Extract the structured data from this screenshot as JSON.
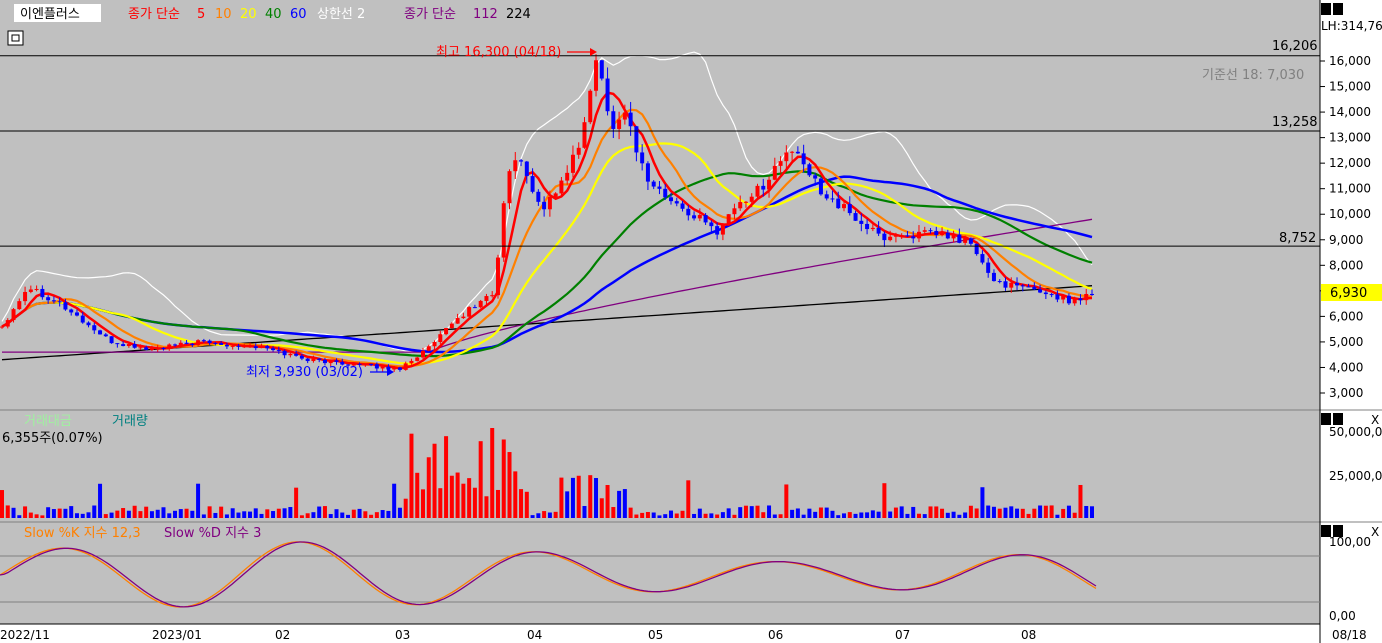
{
  "header": {
    "stock_name": "이엔플러스",
    "ma_prefix": "종가 단순",
    "ma_periods": [
      {
        "label": "5",
        "color": "#ff0000"
      },
      {
        "label": "10",
        "color": "#ff8000"
      },
      {
        "label": "20",
        "color": "#ffff00"
      },
      {
        "label": "40",
        "color": "#008000"
      },
      {
        "label": "60",
        "color": "#0000ff"
      }
    ],
    "band_label": "상한선 2",
    "ma2_prefix": "종가 단순",
    "ma2_periods": [
      {
        "label": "112",
        "color": "#800080"
      },
      {
        "label": "224",
        "color": "#000000"
      }
    ]
  },
  "price_panel": {
    "high_annotation": "최고 16,300 (04/18)",
    "low_annotation": "최저 3,930 (03/02)",
    "hlines": [
      {
        "value": 16206,
        "label": "16,206"
      },
      {
        "value": 13258,
        "label": "13,258"
      },
      {
        "value": 8752,
        "label": "8,752"
      }
    ],
    "top_right_label": "LH:314,76",
    "kijun_label": "기준선 18: 7,030",
    "current_price_label": "6,930",
    "current_price": 6930,
    "y_ticks": [
      "16,000",
      "15,000",
      "14,000",
      "13,000",
      "12,000",
      "11,000",
      "10,000",
      "9,000",
      "8,000",
      "7,000",
      "6,000",
      "5,000",
      "4,000",
      "3,000"
    ],
    "colors": {
      "up": "#ff0000",
      "down": "#0000ff",
      "band": "#ffffff",
      "price_box": "#ffff00"
    }
  },
  "volume_panel": {
    "legend_amount": "거래대금",
    "legend_volume": "거래량",
    "info_text": "6,355주(0.07%)",
    "y_ticks": [
      "50,000,0",
      "25,000,0"
    ]
  },
  "stoch_panel": {
    "legend_k": "Slow %K 지수 12,3",
    "legend_d": "Slow %D 지수 3",
    "y_ticks": [
      "100,00",
      "0,00"
    ],
    "colors": {
      "k": "#ff8000",
      "d": "#800080",
      "fill_high": "#ffa07a",
      "fill_low": "#87cefa"
    }
  },
  "x_axis": {
    "labels": [
      "2022/11",
      "2023/01",
      "02",
      "03",
      "04",
      "05",
      "06",
      "07",
      "08"
    ],
    "last_date": "08/18"
  },
  "chart_data": {
    "type": "line",
    "title": "이엔플러스",
    "price_range": [
      3930,
      16300
    ],
    "ylim": [
      2200,
      17600
    ],
    "high": {
      "value": 16300,
      "date": "04/18"
    },
    "low": {
      "value": 3930,
      "date": "03/02"
    },
    "current": 6930,
    "price_keypoints": [
      {
        "x": "2022/11",
        "y": 5500
      },
      {
        "x": "2022/11 late",
        "y": 7200
      },
      {
        "x": "2023/01",
        "y": 4700
      },
      {
        "x": "02",
        "y": 4600
      },
      {
        "x": "03",
        "y": 3930
      },
      {
        "x": "03 late",
        "y": 6500
      },
      {
        "x": "04 start",
        "y": 11500
      },
      {
        "x": "04",
        "y": 10500
      },
      {
        "x": "04/18",
        "y": 16300
      },
      {
        "x": "05",
        "y": 12000
      },
      {
        "x": "05 mid",
        "y": 9500
      },
      {
        "x": "06",
        "y": 12600
      },
      {
        "x": "06 mid",
        "y": 10500
      },
      {
        "x": "07",
        "y": 9000
      },
      {
        "x": "07 mid",
        "y": 9200
      },
      {
        "x": "08",
        "y": 7000
      },
      {
        "x": "08/18",
        "y": 6930
      }
    ],
    "stoch_range": [
      0,
      100
    ]
  }
}
